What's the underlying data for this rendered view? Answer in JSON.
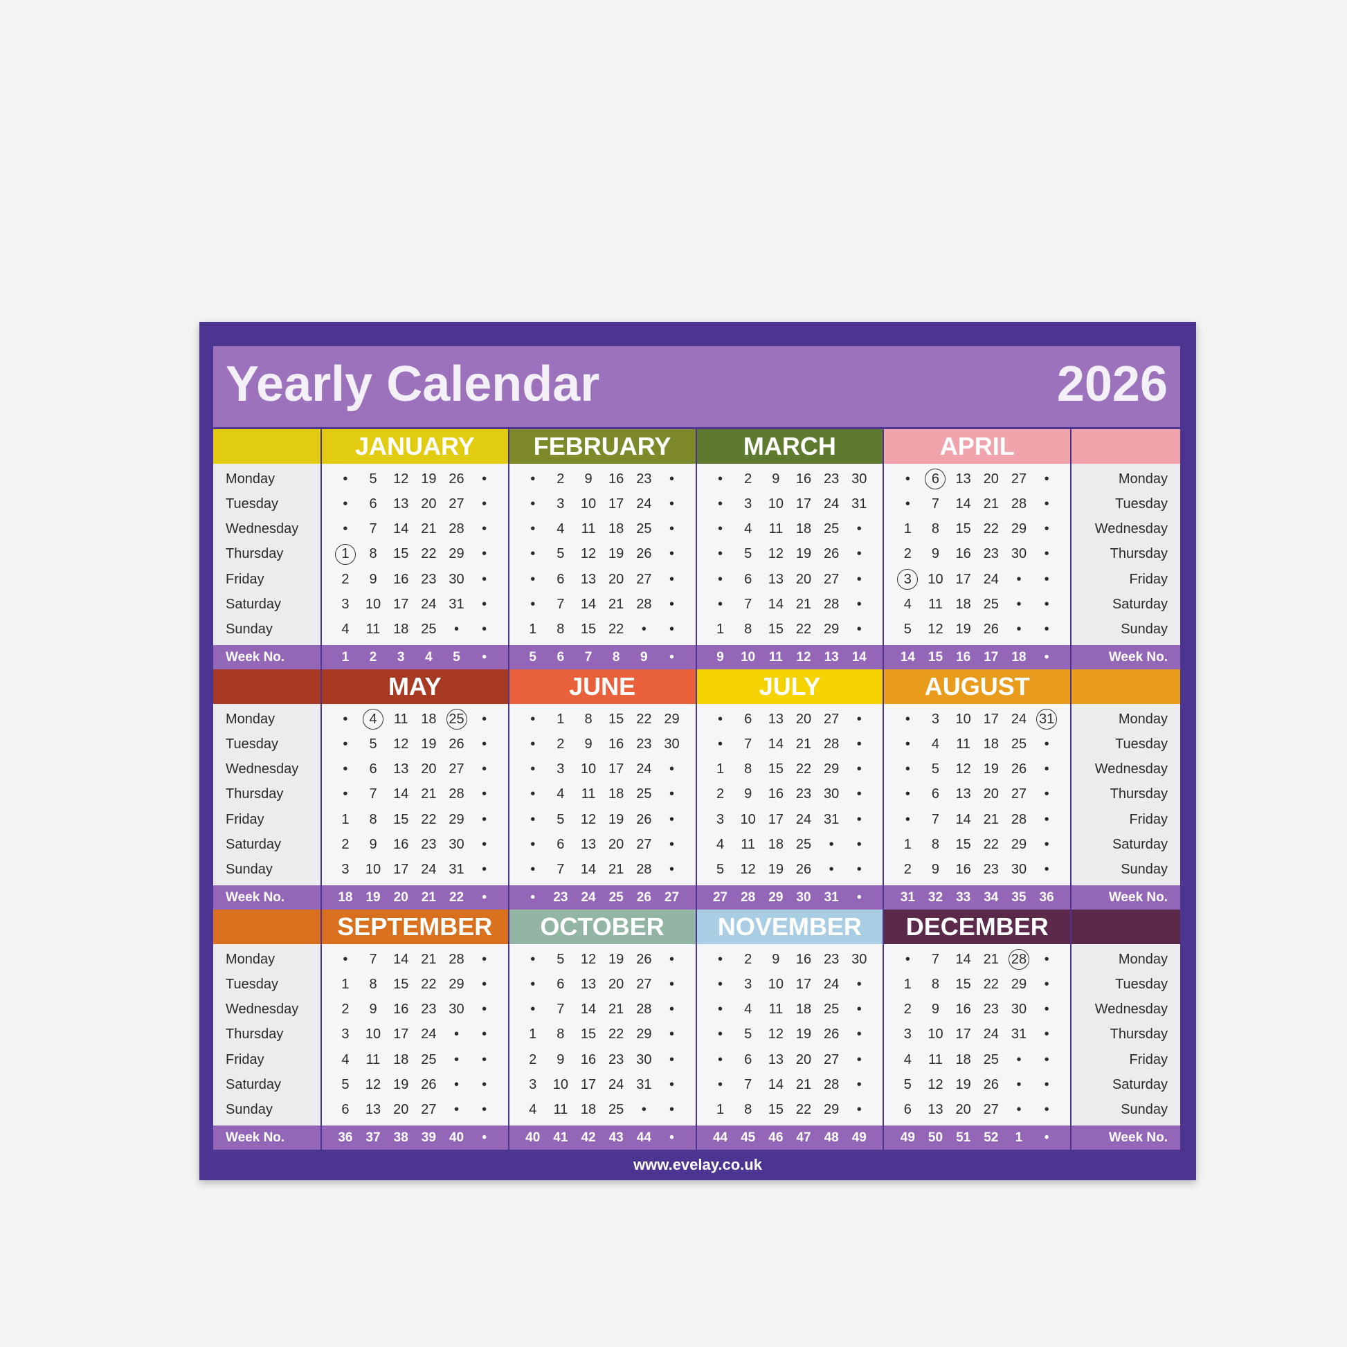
{
  "title": "Yearly Calendar",
  "year": "2026",
  "website": "www.evelay.co.uk",
  "weekdays": [
    "Monday",
    "Tuesday",
    "Wednesday",
    "Thursday",
    "Friday",
    "Saturday",
    "Sunday"
  ],
  "week_label": "Week No.",
  "circled_color": "#333333",
  "row_side_colors": [
    {
      "left": "#e2cc12",
      "right": "#f1a3ab"
    },
    {
      "left": "#a83a24",
      "right": "#e99b1c"
    },
    {
      "left": "#d9701e",
      "right": "#5b2a4b"
    }
  ],
  "months": [
    {
      "name": "JANUARY",
      "color": "#e2cc12",
      "circled": [
        "1"
      ],
      "weeks": [
        "1",
        "2",
        "3",
        "4",
        "5",
        "•"
      ],
      "rows": [
        [
          "•",
          "5",
          "12",
          "19",
          "26",
          "•"
        ],
        [
          "•",
          "6",
          "13",
          "20",
          "27",
          "•"
        ],
        [
          "•",
          "7",
          "14",
          "21",
          "28",
          "•"
        ],
        [
          "1",
          "8",
          "15",
          "22",
          "29",
          "•"
        ],
        [
          "2",
          "9",
          "16",
          "23",
          "30",
          "•"
        ],
        [
          "3",
          "10",
          "17",
          "24",
          "31",
          "•"
        ],
        [
          "4",
          "11",
          "18",
          "25",
          "•",
          "•"
        ]
      ]
    },
    {
      "name": "FEBRUARY",
      "color": "#7e8a2a",
      "circled": [],
      "weeks": [
        "5",
        "6",
        "7",
        "8",
        "9",
        "•"
      ],
      "rows": [
        [
          "•",
          "2",
          "9",
          "16",
          "23",
          "•"
        ],
        [
          "•",
          "3",
          "10",
          "17",
          "24",
          "•"
        ],
        [
          "•",
          "4",
          "11",
          "18",
          "25",
          "•"
        ],
        [
          "•",
          "5",
          "12",
          "19",
          "26",
          "•"
        ],
        [
          "•",
          "6",
          "13",
          "20",
          "27",
          "•"
        ],
        [
          "•",
          "7",
          "14",
          "21",
          "28",
          "•"
        ],
        [
          "1",
          "8",
          "15",
          "22",
          "•",
          "•"
        ]
      ]
    },
    {
      "name": "MARCH",
      "color": "#5d7a2e",
      "circled": [],
      "weeks": [
        "9",
        "10",
        "11",
        "12",
        "13",
        "14"
      ],
      "rows": [
        [
          "•",
          "2",
          "9",
          "16",
          "23",
          "30"
        ],
        [
          "•",
          "3",
          "10",
          "17",
          "24",
          "31"
        ],
        [
          "•",
          "4",
          "11",
          "18",
          "25",
          "•"
        ],
        [
          "•",
          "5",
          "12",
          "19",
          "26",
          "•"
        ],
        [
          "•",
          "6",
          "13",
          "20",
          "27",
          "•"
        ],
        [
          "•",
          "7",
          "14",
          "21",
          "28",
          "•"
        ],
        [
          "1",
          "8",
          "15",
          "22",
          "29",
          "•"
        ]
      ]
    },
    {
      "name": "APRIL",
      "color": "#f1a3ab",
      "circled": [
        "6",
        "3"
      ],
      "weeks": [
        "14",
        "15",
        "16",
        "17",
        "18",
        "•"
      ],
      "rows": [
        [
          "•",
          "6",
          "13",
          "20",
          "27",
          "•"
        ],
        [
          "•",
          "7",
          "14",
          "21",
          "28",
          "•"
        ],
        [
          "1",
          "8",
          "15",
          "22",
          "29",
          "•"
        ],
        [
          "2",
          "9",
          "16",
          "23",
          "30",
          "•"
        ],
        [
          "3",
          "10",
          "17",
          "24",
          "•",
          "•"
        ],
        [
          "4",
          "11",
          "18",
          "25",
          "•",
          "•"
        ],
        [
          "5",
          "12",
          "19",
          "26",
          "•",
          "•"
        ]
      ]
    },
    {
      "name": "MAY",
      "color": "#a83a24",
      "circled": [
        "4",
        "25"
      ],
      "weeks": [
        "18",
        "19",
        "20",
        "21",
        "22",
        "•"
      ],
      "rows": [
        [
          "•",
          "4",
          "11",
          "18",
          "25",
          "•"
        ],
        [
          "•",
          "5",
          "12",
          "19",
          "26",
          "•"
        ],
        [
          "•",
          "6",
          "13",
          "20",
          "27",
          "•"
        ],
        [
          "•",
          "7",
          "14",
          "21",
          "28",
          "•"
        ],
        [
          "1",
          "8",
          "15",
          "22",
          "29",
          "•"
        ],
        [
          "2",
          "9",
          "16",
          "23",
          "30",
          "•"
        ],
        [
          "3",
          "10",
          "17",
          "24",
          "31",
          "•"
        ]
      ]
    },
    {
      "name": "JUNE",
      "color": "#e8613b",
      "circled": [],
      "weeks": [
        "•",
        "23",
        "24",
        "25",
        "26",
        "27"
      ],
      "rows": [
        [
          "•",
          "1",
          "8",
          "15",
          "22",
          "29"
        ],
        [
          "•",
          "2",
          "9",
          "16",
          "23",
          "30"
        ],
        [
          "•",
          "3",
          "10",
          "17",
          "24",
          "•"
        ],
        [
          "•",
          "4",
          "11",
          "18",
          "25",
          "•"
        ],
        [
          "•",
          "5",
          "12",
          "19",
          "26",
          "•"
        ],
        [
          "•",
          "6",
          "13",
          "20",
          "27",
          "•"
        ],
        [
          "•",
          "7",
          "14",
          "21",
          "28",
          "•"
        ]
      ]
    },
    {
      "name": "JULY",
      "color": "#f5d300",
      "circled": [],
      "weeks": [
        "27",
        "28",
        "29",
        "30",
        "31",
        "•"
      ],
      "rows": [
        [
          "•",
          "6",
          "13",
          "20",
          "27",
          "•"
        ],
        [
          "•",
          "7",
          "14",
          "21",
          "28",
          "•"
        ],
        [
          "1",
          "8",
          "15",
          "22",
          "29",
          "•"
        ],
        [
          "2",
          "9",
          "16",
          "23",
          "30",
          "•"
        ],
        [
          "3",
          "10",
          "17",
          "24",
          "31",
          "•"
        ],
        [
          "4",
          "11",
          "18",
          "25",
          "•",
          "•"
        ],
        [
          "5",
          "12",
          "19",
          "26",
          "•",
          "•"
        ]
      ]
    },
    {
      "name": "AUGUST",
      "color": "#e99b1c",
      "circled": [
        "31"
      ],
      "weeks": [
        "31",
        "32",
        "33",
        "34",
        "35",
        "36"
      ],
      "rows": [
        [
          "•",
          "3",
          "10",
          "17",
          "24",
          "31"
        ],
        [
          "•",
          "4",
          "11",
          "18",
          "25",
          "•"
        ],
        [
          "•",
          "5",
          "12",
          "19",
          "26",
          "•"
        ],
        [
          "•",
          "6",
          "13",
          "20",
          "27",
          "•"
        ],
        [
          "•",
          "7",
          "14",
          "21",
          "28",
          "•"
        ],
        [
          "1",
          "8",
          "15",
          "22",
          "29",
          "•"
        ],
        [
          "2",
          "9",
          "16",
          "23",
          "30",
          "•"
        ]
      ]
    },
    {
      "name": "SEPTEMBER",
      "color": "#d9701e",
      "circled": [],
      "weeks": [
        "36",
        "37",
        "38",
        "39",
        "40",
        "•"
      ],
      "rows": [
        [
          "•",
          "7",
          "14",
          "21",
          "28",
          "•"
        ],
        [
          "1",
          "8",
          "15",
          "22",
          "29",
          "•"
        ],
        [
          "2",
          "9",
          "16",
          "23",
          "30",
          "•"
        ],
        [
          "3",
          "10",
          "17",
          "24",
          "•",
          "•"
        ],
        [
          "4",
          "11",
          "18",
          "25",
          "•",
          "•"
        ],
        [
          "5",
          "12",
          "19",
          "26",
          "•",
          "•"
        ],
        [
          "6",
          "13",
          "20",
          "27",
          "•",
          "•"
        ]
      ]
    },
    {
      "name": "OCTOBER",
      "color": "#93b5a3",
      "circled": [],
      "weeks": [
        "40",
        "41",
        "42",
        "43",
        "44",
        "•"
      ],
      "rows": [
        [
          "•",
          "5",
          "12",
          "19",
          "26",
          "•"
        ],
        [
          "•",
          "6",
          "13",
          "20",
          "27",
          "•"
        ],
        [
          "•",
          "7",
          "14",
          "21",
          "28",
          "•"
        ],
        [
          "1",
          "8",
          "15",
          "22",
          "29",
          "•"
        ],
        [
          "2",
          "9",
          "16",
          "23",
          "30",
          "•"
        ],
        [
          "3",
          "10",
          "17",
          "24",
          "31",
          "•"
        ],
        [
          "4",
          "11",
          "18",
          "25",
          "•",
          "•"
        ]
      ]
    },
    {
      "name": "NOVEMBER",
      "color": "#a9cde2",
      "circled": [],
      "weeks": [
        "44",
        "45",
        "46",
        "47",
        "48",
        "49"
      ],
      "rows": [
        [
          "•",
          "2",
          "9",
          "16",
          "23",
          "30"
        ],
        [
          "•",
          "3",
          "10",
          "17",
          "24",
          "•"
        ],
        [
          "•",
          "4",
          "11",
          "18",
          "25",
          "•"
        ],
        [
          "•",
          "5",
          "12",
          "19",
          "26",
          "•"
        ],
        [
          "•",
          "6",
          "13",
          "20",
          "27",
          "•"
        ],
        [
          "•",
          "7",
          "14",
          "21",
          "28",
          "•"
        ],
        [
          "1",
          "8",
          "15",
          "22",
          "29",
          "•"
        ]
      ]
    },
    {
      "name": "DECEMBER",
      "color": "#5b2a4b",
      "circled": [
        "28"
      ],
      "weeks": [
        "49",
        "50",
        "51",
        "52",
        "1",
        "•"
      ],
      "rows": [
        [
          "•",
          "7",
          "14",
          "21",
          "28",
          "•"
        ],
        [
          "1",
          "8",
          "15",
          "22",
          "29",
          "•"
        ],
        [
          "2",
          "9",
          "16",
          "23",
          "30",
          "•"
        ],
        [
          "3",
          "10",
          "17",
          "24",
          "31",
          "•"
        ],
        [
          "4",
          "11",
          "18",
          "25",
          "•",
          "•"
        ],
        [
          "5",
          "12",
          "19",
          "26",
          "•",
          "•"
        ],
        [
          "6",
          "13",
          "20",
          "27",
          "•",
          "•"
        ]
      ]
    }
  ]
}
